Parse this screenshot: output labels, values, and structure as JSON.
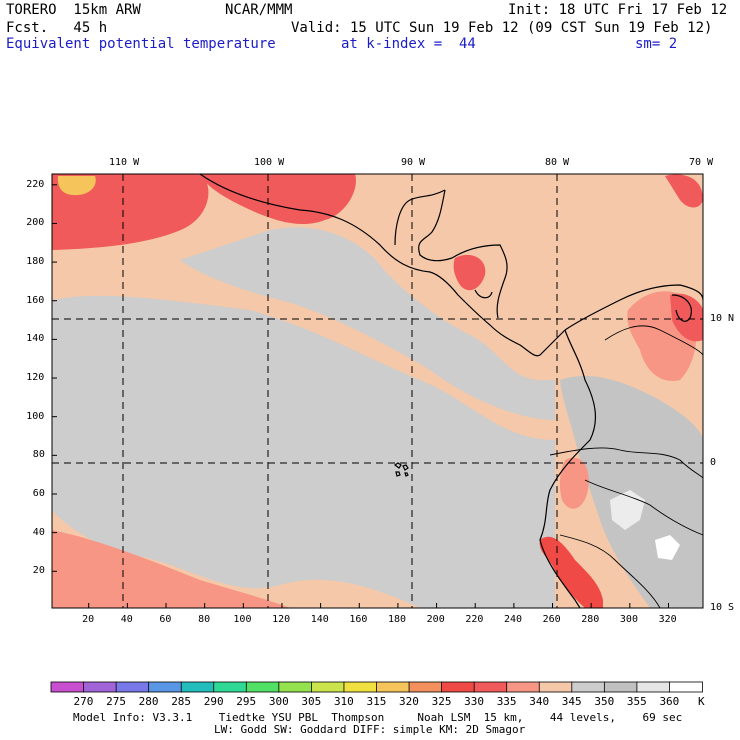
{
  "header": {
    "model": "TORERO  15km ARW",
    "center": "NCAR/MMM",
    "init": "Init: 18 UTC Fri 17 Feb 12",
    "fcst": "Fcst.   45 h",
    "valid": "Valid: 15 UTC Sun 19 Feb 12 (09 CST Sun 19 Feb 12)",
    "field": "Equivalent potential temperature",
    "level": "at k-index =  44",
    "smoothing": "sm= 2"
  },
  "axes": {
    "x_ticks": [
      "20",
      "40",
      "60",
      "80",
      "100",
      "120",
      "140",
      "160",
      "180",
      "200",
      "220",
      "240",
      "260",
      "280",
      "300",
      "320"
    ],
    "y_ticks": [
      "20",
      "40",
      "60",
      "80",
      "100",
      "120",
      "140",
      "160",
      "180",
      "200",
      "220"
    ],
    "lon_labels": [
      "110 W",
      "100 W",
      "90 W",
      "80 W",
      "70 W"
    ],
    "lat_labels": [
      "10 N",
      "0",
      "10 S"
    ]
  },
  "colorbar": {
    "levels": [
      "270",
      "275",
      "280",
      "285",
      "290",
      "295",
      "300",
      "305",
      "310",
      "315",
      "320",
      "325",
      "330",
      "335",
      "340",
      "345",
      "350",
      "355",
      "360"
    ],
    "unit": "K",
    "colors": [
      "#c850d0",
      "#a064d8",
      "#7878e8",
      "#5a96e6",
      "#22bcbc",
      "#30d896",
      "#50e066",
      "#94e24e",
      "#cce44c",
      "#f0e040",
      "#f5c45a",
      "#f4905e",
      "#f04a46",
      "#f05a5a",
      "#f89686",
      "#f4c8a8",
      "#cdcdcd",
      "#c0c0c0",
      "#e6e6e6",
      "#ffffff"
    ]
  },
  "footer": {
    "line1": "Model Info: V3.3.1    Tiedtke YSU PBL  Thompson     Noah LSM  15 km,    44 levels,    69 sec",
    "line2": "LW: Godd SW: Goddard DIFF: simple KM: 2D Smagor"
  }
}
